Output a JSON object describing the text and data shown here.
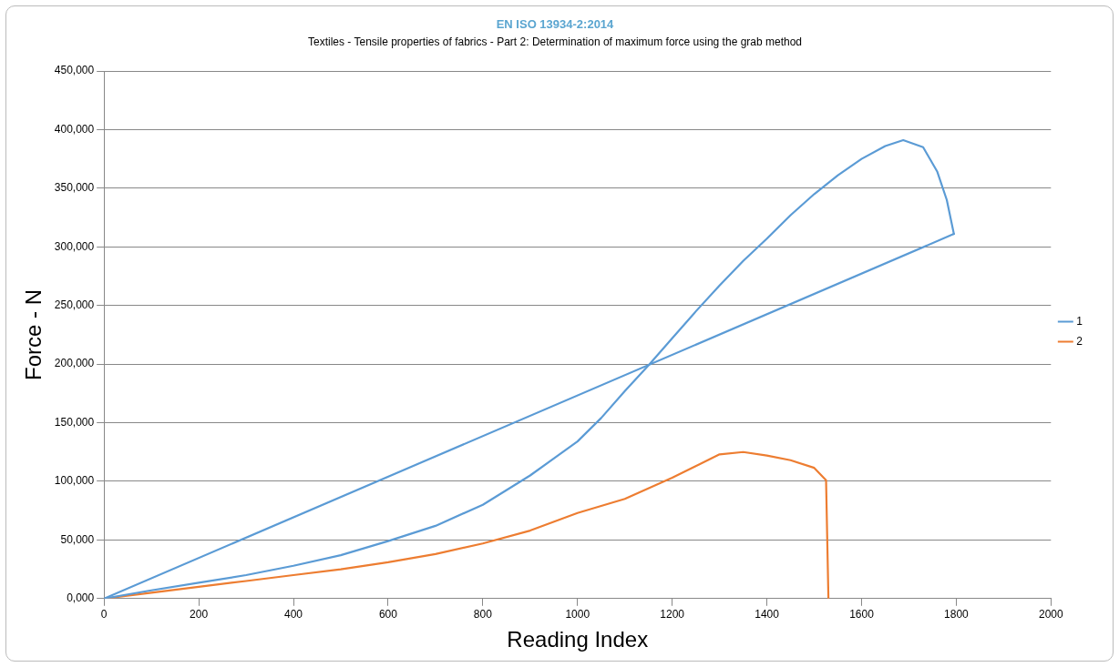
{
  "chart_data": {
    "type": "line",
    "title": "EN ISO 13934-2:2014",
    "subtitle": "Textiles - Tensile properties of fabrics - Part 2: Determination of maximum force using the grab method",
    "xlabel": "Reading Index",
    "ylabel": "Force - N",
    "xlim": [
      0,
      2000
    ],
    "xticks": [
      0,
      200,
      400,
      600,
      800,
      1000,
      1200,
      1400,
      1600,
      1800,
      2000
    ],
    "ylim": [
      0,
      450000
    ],
    "yticks": [
      {
        "value": 0,
        "label": "0,000"
      },
      {
        "value": 50000,
        "label": "50,000"
      },
      {
        "value": 100000,
        "label": "100,000"
      },
      {
        "value": 150000,
        "label": "150,000"
      },
      {
        "value": 200000,
        "label": "200,000"
      },
      {
        "value": 250000,
        "label": "250,000"
      },
      {
        "value": 300000,
        "label": "300,000"
      },
      {
        "value": 350000,
        "label": "350,000"
      },
      {
        "value": 400000,
        "label": "400,000"
      },
      {
        "value": 450000,
        "label": "450,000"
      }
    ],
    "grid": "y",
    "legend": "right",
    "marker": "none",
    "line_style": "solid",
    "series": [
      {
        "name": "1",
        "color": "#5b9bd5",
        "x": [
          0,
          100,
          200,
          300,
          400,
          500,
          600,
          700,
          800,
          900,
          1000,
          1050,
          1100,
          1150,
          1200,
          1250,
          1300,
          1350,
          1400,
          1450,
          1500,
          1550,
          1600,
          1650,
          1688,
          1730,
          1760,
          1780,
          1795
        ],
        "values": [
          0,
          7000,
          13500,
          20000,
          28000,
          37000,
          49000,
          62000,
          80000,
          105000,
          134000,
          154000,
          177000,
          199000,
          222000,
          245000,
          267000,
          288000,
          307000,
          327000,
          345000,
          361000,
          375000,
          386000,
          391000,
          385000,
          364000,
          340000,
          311000
        ]
      },
      {
        "color": "#5b9bd5",
        "x": [
          0,
          1795
        ],
        "values": [
          0,
          311000
        ]
      },
      {
        "name": "2",
        "color": "#ed7d31",
        "x": [
          0,
          100,
          200,
          300,
          400,
          500,
          600,
          700,
          800,
          900,
          1000,
          1100,
          1200,
          1300,
          1350,
          1400,
          1450,
          1500,
          1525,
          1530
        ],
        "values": [
          0,
          5000,
          10000,
          15000,
          20000,
          25000,
          31000,
          38000,
          47000,
          58000,
          73000,
          85000,
          103000,
          123000,
          125000,
          122000,
          118000,
          111500,
          101000,
          0
        ]
      }
    ]
  }
}
